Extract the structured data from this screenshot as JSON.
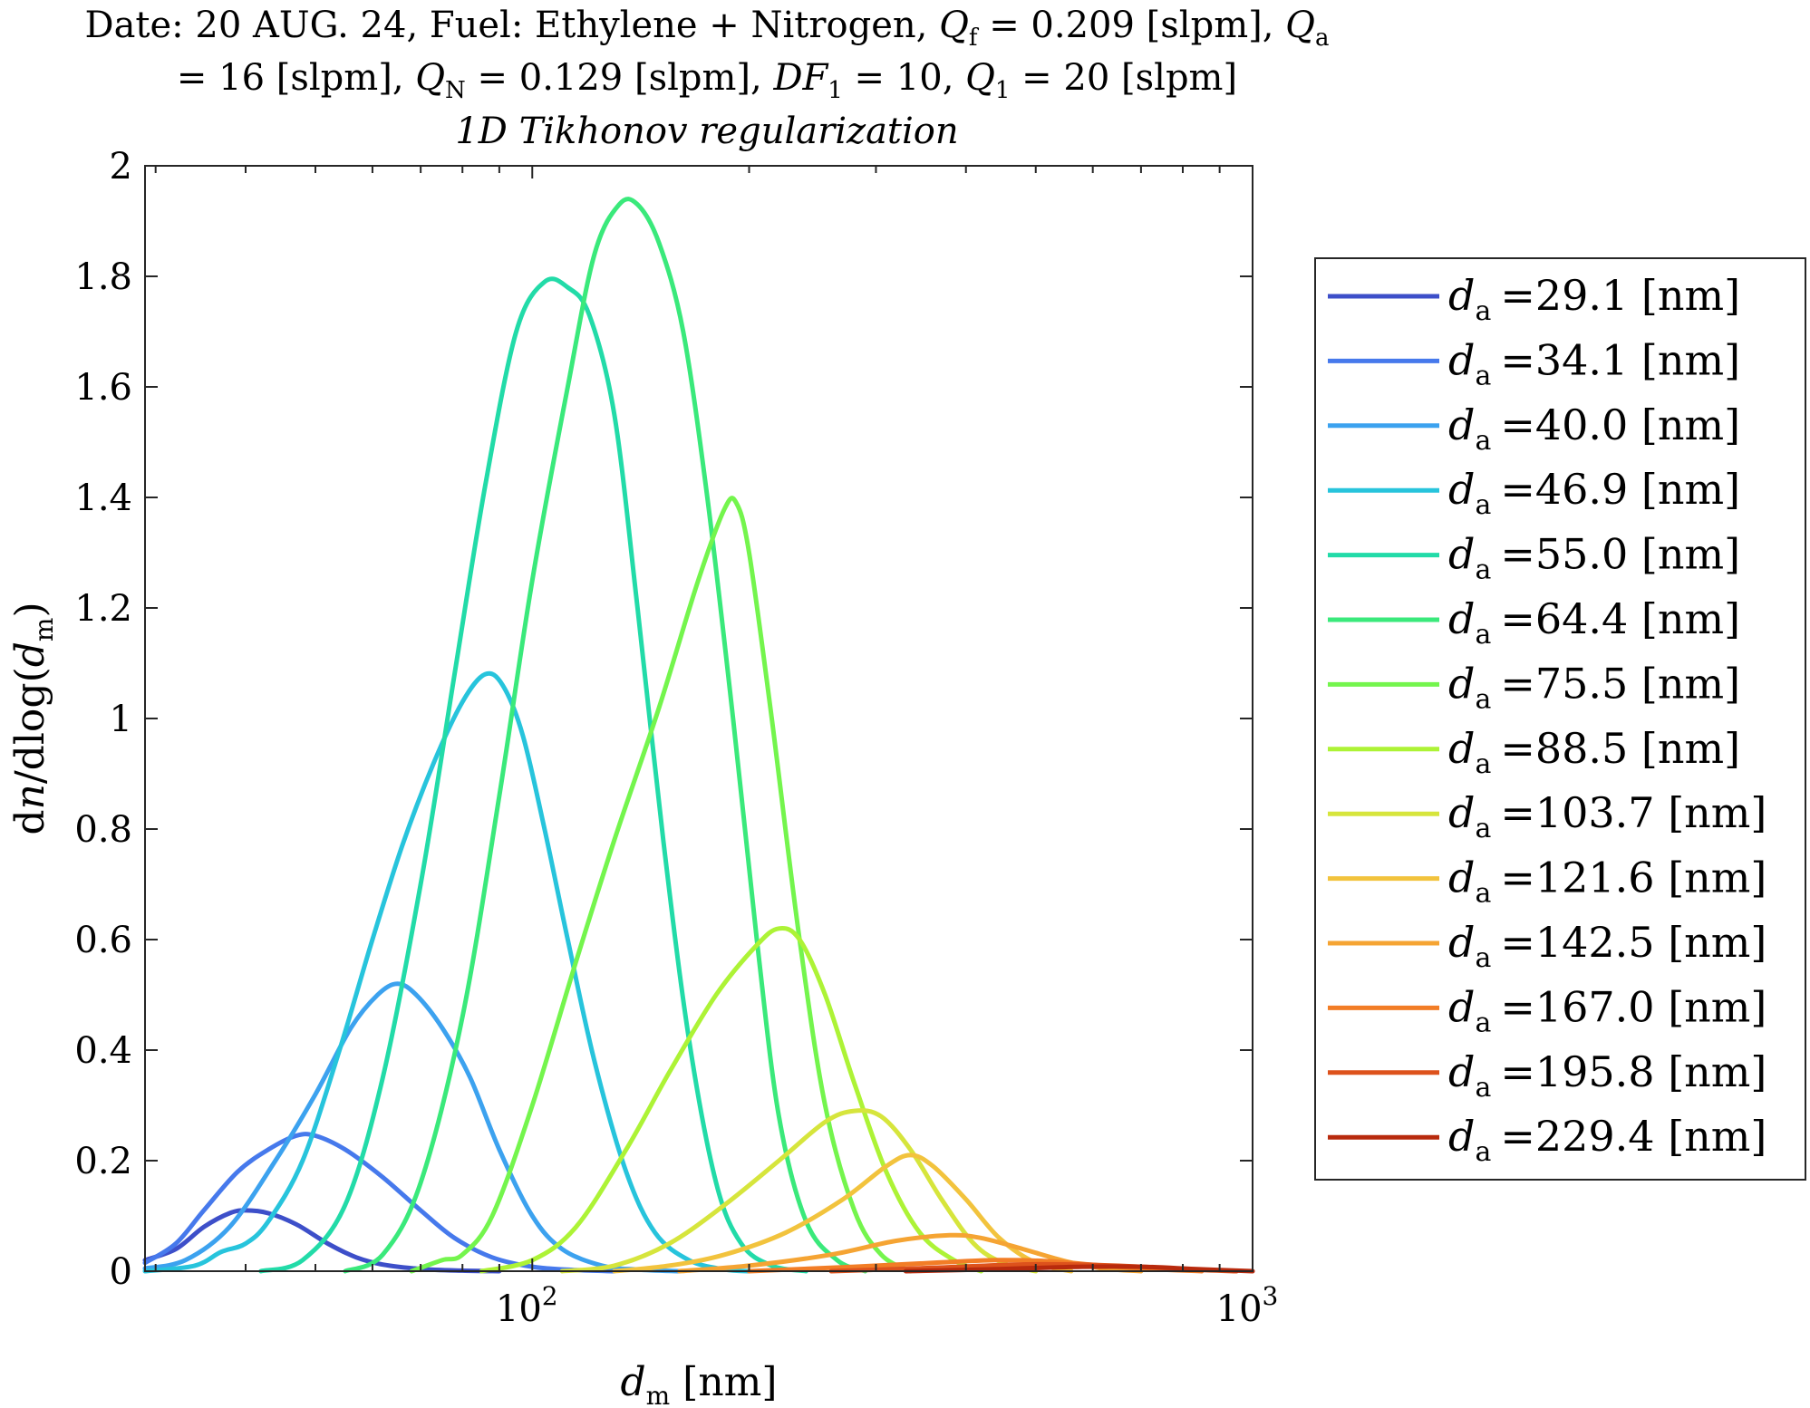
{
  "chart_data": {
    "type": "line",
    "title": {
      "line1": {
        "prefix": "Date: 20 AUG. 24, Fuel: Ethylene + Nitrogen, ",
        "qf_sym": "Q",
        "qf_sub": "f",
        "qf_val": " = 0.209 [slpm], ",
        "qa_sym": "Q",
        "qa_sub": "a"
      },
      "line2": {
        "qa_val": "= 16 [slpm], ",
        "qn_sym": "Q",
        "qn_sub": "N",
        "qn_val": " = 0.129 [slpm], ",
        "df_sym": "DF",
        "df_sub": "1",
        "df_val": " = 10, ",
        "q1_sym": "Q",
        "q1_sub": "1",
        "q1_val": " = 20 [slpm]"
      }
    },
    "subtitle": "1D Tikhonov regularization",
    "xlabel": {
      "sym": "d",
      "sub": "m",
      "unit": " [nm]"
    },
    "ylabel": {
      "pre": "d",
      "n": "n",
      "mid": "/dlog(",
      "sym": "d",
      "sub": "m",
      "post": ")"
    },
    "x_scale": "log",
    "xlim": [
      29,
      1000
    ],
    "ylim": [
      0,
      2
    ],
    "x_ticks": [
      {
        "value": 100,
        "base": "10",
        "exp": "2"
      },
      {
        "value": 1000,
        "base": "10",
        "exp": "3"
      }
    ],
    "y_ticks": [
      {
        "value": 0,
        "label": "0"
      },
      {
        "value": 0.2,
        "label": "0.2"
      },
      {
        "value": 0.4,
        "label": "0.4"
      },
      {
        "value": 0.6,
        "label": "0.6"
      },
      {
        "value": 0.8,
        "label": "0.8"
      },
      {
        "value": 1,
        "label": "1"
      },
      {
        "value": 1.2,
        "label": "1.2"
      },
      {
        "value": 1.4,
        "label": "1.4"
      },
      {
        "value": 1.6,
        "label": "1.6"
      },
      {
        "value": 1.8,
        "label": "1.8"
      },
      {
        "value": 2,
        "label": "2"
      }
    ],
    "grid": false,
    "legend_position": "right-outside",
    "series": [
      {
        "name": "=29.1 [nm]",
        "color": "#3d4fc9",
        "points": [
          [
            29,
            0.02
          ],
          [
            32,
            0.04
          ],
          [
            35,
            0.08
          ],
          [
            38,
            0.105
          ],
          [
            40,
            0.11
          ],
          [
            43,
            0.105
          ],
          [
            47,
            0.085
          ],
          [
            52,
            0.05
          ],
          [
            57,
            0.025
          ],
          [
            62,
            0.012
          ],
          [
            70,
            0.004
          ],
          [
            80,
            0.001
          ],
          [
            90,
            0
          ]
        ]
      },
      {
        "name": "=34.1 [nm]",
        "color": "#4679ec",
        "points": [
          [
            29,
            0.015
          ],
          [
            32,
            0.05
          ],
          [
            35,
            0.11
          ],
          [
            39,
            0.18
          ],
          [
            43,
            0.22
          ],
          [
            47,
            0.245
          ],
          [
            50,
            0.245
          ],
          [
            55,
            0.22
          ],
          [
            62,
            0.17
          ],
          [
            70,
            0.11
          ],
          [
            78,
            0.06
          ],
          [
            88,
            0.025
          ],
          [
            100,
            0.008
          ],
          [
            115,
            0.002
          ],
          [
            130,
            0
          ]
        ]
      },
      {
        "name": "=40.0 [nm]",
        "color": "#3ca2ef",
        "points": [
          [
            29,
            0.005
          ],
          [
            33,
            0.02
          ],
          [
            38,
            0.08
          ],
          [
            44,
            0.2
          ],
          [
            50,
            0.32
          ],
          [
            56,
            0.44
          ],
          [
            61,
            0.5
          ],
          [
            65,
            0.52
          ],
          [
            69,
            0.5
          ],
          [
            75,
            0.44
          ],
          [
            82,
            0.35
          ],
          [
            90,
            0.22
          ],
          [
            100,
            0.1
          ],
          [
            110,
            0.04
          ],
          [
            125,
            0.01
          ],
          [
            140,
            0.003
          ],
          [
            160,
            0
          ]
        ]
      },
      {
        "name": "=46.9 [nm]",
        "color": "#27c4dc",
        "points": [
          [
            29,
            0
          ],
          [
            34,
            0.01
          ],
          [
            37,
            0.035
          ],
          [
            40,
            0.05
          ],
          [
            43,
            0.09
          ],
          [
            48,
            0.2
          ],
          [
            54,
            0.4
          ],
          [
            60,
            0.6
          ],
          [
            66,
            0.77
          ],
          [
            73,
            0.92
          ],
          [
            80,
            1.03
          ],
          [
            86,
            1.08
          ],
          [
            91,
            1.06
          ],
          [
            97,
            0.97
          ],
          [
            104,
            0.8
          ],
          [
            112,
            0.6
          ],
          [
            122,
            0.38
          ],
          [
            135,
            0.18
          ],
          [
            148,
            0.07
          ],
          [
            165,
            0.02
          ],
          [
            185,
            0.003
          ],
          [
            200,
            0
          ]
        ]
      },
      {
        "name": "=55.0 [nm]",
        "color": "#22dba8",
        "points": [
          [
            42,
            0
          ],
          [
            48,
            0.02
          ],
          [
            55,
            0.12
          ],
          [
            62,
            0.35
          ],
          [
            70,
            0.7
          ],
          [
            78,
            1.08
          ],
          [
            86,
            1.42
          ],
          [
            95,
            1.7
          ],
          [
            104,
            1.79
          ],
          [
            112,
            1.78
          ],
          [
            120,
            1.73
          ],
          [
            130,
            1.55
          ],
          [
            140,
            1.2
          ],
          [
            152,
            0.78
          ],
          [
            165,
            0.42
          ],
          [
            180,
            0.16
          ],
          [
            195,
            0.05
          ],
          [
            215,
            0.01
          ],
          [
            240,
            0
          ]
        ]
      },
      {
        "name": "=64.4 [nm]",
        "color": "#3ae97b",
        "points": [
          [
            55,
            0
          ],
          [
            62,
            0.03
          ],
          [
            70,
            0.16
          ],
          [
            80,
            0.46
          ],
          [
            90,
            0.86
          ],
          [
            100,
            1.25
          ],
          [
            112,
            1.6
          ],
          [
            122,
            1.84
          ],
          [
            132,
            1.93
          ],
          [
            140,
            1.93
          ],
          [
            150,
            1.86
          ],
          [
            162,
            1.7
          ],
          [
            175,
            1.4
          ],
          [
            190,
            1.0
          ],
          [
            205,
            0.6
          ],
          [
            220,
            0.28
          ],
          [
            240,
            0.09
          ],
          [
            265,
            0.02
          ],
          [
            290,
            0
          ]
        ]
      },
      {
        "name": "=75.5 [nm]",
        "color": "#74f54d",
        "points": [
          [
            68,
            0
          ],
          [
            75,
            0.02
          ],
          [
            80,
            0.03
          ],
          [
            88,
            0.1
          ],
          [
            100,
            0.3
          ],
          [
            115,
            0.56
          ],
          [
            130,
            0.78
          ],
          [
            150,
            1.02
          ],
          [
            170,
            1.25
          ],
          [
            185,
            1.38
          ],
          [
            192,
            1.39
          ],
          [
            200,
            1.3
          ],
          [
            215,
            1.0
          ],
          [
            235,
            0.6
          ],
          [
            255,
            0.3
          ],
          [
            280,
            0.11
          ],
          [
            305,
            0.03
          ],
          [
            335,
            0
          ]
        ]
      },
      {
        "name": "=88.5 [nm]",
        "color": "#adf336",
        "points": [
          [
            85,
            0
          ],
          [
            100,
            0.02
          ],
          [
            115,
            0.08
          ],
          [
            135,
            0.22
          ],
          [
            155,
            0.36
          ],
          [
            180,
            0.5
          ],
          [
            205,
            0.59
          ],
          [
            220,
            0.62
          ],
          [
            235,
            0.6
          ],
          [
            255,
            0.5
          ],
          [
            280,
            0.34
          ],
          [
            310,
            0.18
          ],
          [
            345,
            0.07
          ],
          [
            385,
            0.02
          ],
          [
            420,
            0
          ]
        ]
      },
      {
        "name": "=103.7 [nm]",
        "color": "#d6e53c",
        "points": [
          [
            110,
            0
          ],
          [
            130,
            0.01
          ],
          [
            155,
            0.05
          ],
          [
            185,
            0.12
          ],
          [
            220,
            0.2
          ],
          [
            255,
            0.27
          ],
          [
            280,
            0.29
          ],
          [
            305,
            0.28
          ],
          [
            335,
            0.22
          ],
          [
            370,
            0.13
          ],
          [
            410,
            0.05
          ],
          [
            450,
            0.015
          ],
          [
            500,
            0
          ]
        ]
      },
      {
        "name": "=121.6 [nm]",
        "color": "#f2c33d",
        "points": [
          [
            130,
            0
          ],
          [
            155,
            0.01
          ],
          [
            185,
            0.03
          ],
          [
            225,
            0.07
          ],
          [
            270,
            0.13
          ],
          [
            310,
            0.19
          ],
          [
            335,
            0.21
          ],
          [
            360,
            0.19
          ],
          [
            400,
            0.13
          ],
          [
            445,
            0.06
          ],
          [
            500,
            0.015
          ],
          [
            560,
            0
          ]
        ]
      },
      {
        "name": "=142.5 [nm]",
        "color": "#f5a433",
        "points": [
          [
            160,
            0
          ],
          [
            200,
            0.01
          ],
          [
            260,
            0.03
          ],
          [
            320,
            0.055
          ],
          [
            380,
            0.065
          ],
          [
            420,
            0.06
          ],
          [
            480,
            0.04
          ],
          [
            550,
            0.018
          ],
          [
            620,
            0.005
          ],
          [
            700,
            0
          ]
        ]
      },
      {
        "name": "=167.0 [nm]",
        "color": "#f27d26",
        "points": [
          [
            200,
            0
          ],
          [
            280,
            0.008
          ],
          [
            360,
            0.015
          ],
          [
            440,
            0.02
          ],
          [
            520,
            0.018
          ],
          [
            620,
            0.01
          ],
          [
            720,
            0.004
          ],
          [
            850,
            0
          ]
        ]
      },
      {
        "name": "=195.8 [nm]",
        "color": "#dd521c",
        "points": [
          [
            260,
            0
          ],
          [
            360,
            0.006
          ],
          [
            470,
            0.012
          ],
          [
            580,
            0.012
          ],
          [
            700,
            0.008
          ],
          [
            820,
            0.003
          ],
          [
            950,
            0
          ]
        ]
      },
      {
        "name": "=229.4 [nm]",
        "color": "#b82a0d",
        "points": [
          [
            330,
            0
          ],
          [
            450,
            0.004
          ],
          [
            580,
            0.008
          ],
          [
            700,
            0.008
          ],
          [
            830,
            0.004
          ],
          [
            1000,
            0
          ]
        ]
      }
    ],
    "legend_symbol": {
      "sym": "d",
      "sub": "a"
    }
  }
}
